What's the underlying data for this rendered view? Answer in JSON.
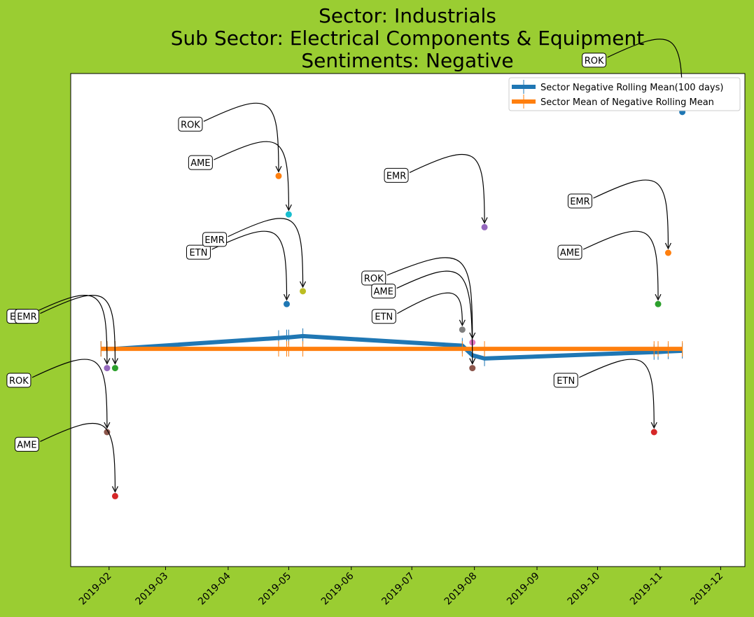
{
  "chart_data": {
    "type": "line",
    "title": [
      "Sector:  Industrials",
      "Sub Sector:  Electrical Components & Equipment",
      "Sentiments:  Negative"
    ],
    "xlabel": "",
    "ylabel": "",
    "x_ticks": [
      "2019-02",
      "2019-03",
      "2019-04",
      "2019-05",
      "2019-06",
      "2019-07",
      "2019-08",
      "2019-09",
      "2019-10",
      "2019-11",
      "2019-12"
    ],
    "xlim": [
      "2019-01-13",
      "2019-12-13"
    ],
    "ylim": [
      -3.4,
      4.3
    ],
    "y_tick_labels_shown": false,
    "grid": false,
    "legend_position": "top-right",
    "colors": {
      "background": "#9acd32",
      "plot_bg": "#ffffff",
      "rolling": "#1f77b4",
      "mean": "#ff7f0e"
    },
    "series": [
      {
        "name": "Sector Negative Rolling Mean(100 days)",
        "color": "#1f77b4",
        "points": [
          {
            "x": "2019-01-28",
            "y": 0.0
          },
          {
            "x": "2019-01-31",
            "y": 0.0
          },
          {
            "x": "2019-02-04",
            "y": 0.0
          },
          {
            "x": "2019-04-26",
            "y": 0.17
          },
          {
            "x": "2019-04-30",
            "y": 0.18
          },
          {
            "x": "2019-05-01",
            "y": 0.18
          },
          {
            "x": "2019-05-08",
            "y": 0.2
          },
          {
            "x": "2019-07-26",
            "y": 0.05
          },
          {
            "x": "2019-07-31",
            "y": -0.1
          },
          {
            "x": "2019-08-06",
            "y": -0.15
          },
          {
            "x": "2019-10-29",
            "y": -0.05
          },
          {
            "x": "2019-10-31",
            "y": -0.05
          },
          {
            "x": "2019-11-05",
            "y": -0.04
          },
          {
            "x": "2019-11-12",
            "y": -0.03
          }
        ]
      },
      {
        "name": "Sector Mean of Negative Rolling Mean",
        "color": "#ff7f0e",
        "points": [
          {
            "x": "2019-01-28",
            "y": 0.0
          },
          {
            "x": "2019-01-31",
            "y": 0.0
          },
          {
            "x": "2019-02-04",
            "y": 0.0
          },
          {
            "x": "2019-04-26",
            "y": 0.0
          },
          {
            "x": "2019-04-30",
            "y": 0.0
          },
          {
            "x": "2019-05-01",
            "y": 0.0
          },
          {
            "x": "2019-05-08",
            "y": 0.0
          },
          {
            "x": "2019-07-26",
            "y": 0.0
          },
          {
            "x": "2019-07-31",
            "y": 0.0
          },
          {
            "x": "2019-08-06",
            "y": 0.0
          },
          {
            "x": "2019-10-29",
            "y": 0.0
          },
          {
            "x": "2019-10-31",
            "y": 0.0
          },
          {
            "x": "2019-11-05",
            "y": 0.0
          },
          {
            "x": "2019-11-12",
            "y": 0.0
          }
        ]
      }
    ],
    "annotations": [
      {
        "label": "ETN",
        "x": "2019-01-31",
        "y": -0.3,
        "color": "#9467bd"
      },
      {
        "label": "ROK",
        "x": "2019-01-31",
        "y": -1.3,
        "color": "#8c564b"
      },
      {
        "label": "EMR",
        "x": "2019-02-04",
        "y": -0.3,
        "color": "#2ca02c"
      },
      {
        "label": "AME",
        "x": "2019-02-04",
        "y": -2.3,
        "color": "#d62728"
      },
      {
        "label": "ROK",
        "x": "2019-04-26",
        "y": 2.7,
        "color": "#ff7f0e"
      },
      {
        "label": "ETN",
        "x": "2019-04-30",
        "y": 0.7,
        "color": "#1f77b4"
      },
      {
        "label": "AME",
        "x": "2019-05-01",
        "y": 2.1,
        "color": "#17becf"
      },
      {
        "label": "EMR",
        "x": "2019-05-08",
        "y": 0.9,
        "color": "#bcbd22"
      },
      {
        "label": "ETN",
        "x": "2019-07-26",
        "y": 0.3,
        "color": "#7f7f7f"
      },
      {
        "label": "ROK",
        "x": "2019-07-31",
        "y": 0.1,
        "color": "#e377c2"
      },
      {
        "label": "AME",
        "x": "2019-07-31",
        "y": -0.3,
        "color": "#8c564b"
      },
      {
        "label": "EMR",
        "x": "2019-08-06",
        "y": 1.9,
        "color": "#9467bd"
      },
      {
        "label": "ETN",
        "x": "2019-10-29",
        "y": -1.3,
        "color": "#d62728"
      },
      {
        "label": "AME",
        "x": "2019-10-31",
        "y": 0.7,
        "color": "#2ca02c"
      },
      {
        "label": "EMR",
        "x": "2019-11-05",
        "y": 1.5,
        "color": "#ff7f0e"
      },
      {
        "label": "ROK",
        "x": "2019-11-12",
        "y": 3.7,
        "color": "#1f77b4"
      }
    ]
  }
}
